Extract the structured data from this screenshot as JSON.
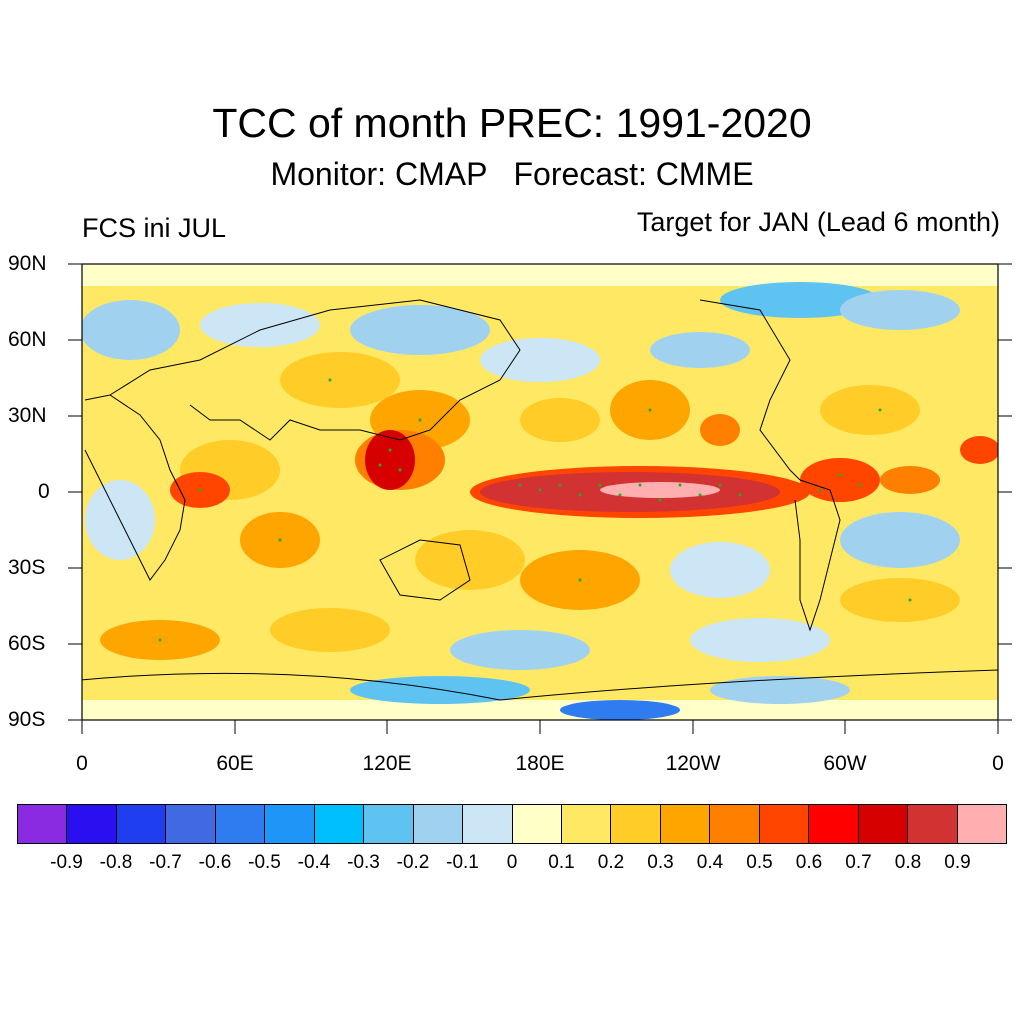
{
  "title": "TCC of month PREC: 1991-2020",
  "subtitle": "Monitor: CMAP   Forecast: CMME",
  "left_label": "FCS ini JUL",
  "right_label": "Target for JAN (Lead 6 month)",
  "lat_labels": [
    "90N",
    "60N",
    "30N",
    "0",
    "30S",
    "60S",
    "90S"
  ],
  "lon_labels": [
    "0",
    "60E",
    "120E",
    "180E",
    "120W",
    "60W",
    "0"
  ],
  "colorbar": {
    "colors": [
      "#8a2be2",
      "#2a10f0",
      "#1f3ef0",
      "#4169e1",
      "#2f7cf0",
      "#1e96f8",
      "#00bfff",
      "#5fc3f2",
      "#a0d2f0",
      "#cce6f6",
      "#ffffc8",
      "#ffe964",
      "#ffcc28",
      "#ffa500",
      "#ff7f00",
      "#ff4500",
      "#ff0000",
      "#d70000",
      "#d23232",
      "#ffafaf"
    ],
    "labels": [
      "-0.9",
      "-0.8",
      "-0.7",
      "-0.6",
      "-0.5",
      "-0.4",
      "-0.3",
      "-0.2",
      "-0.1",
      "0",
      "0.1",
      "0.2",
      "0.3",
      "0.4",
      "0.5",
      "0.6",
      "0.7",
      "0.8",
      "0.9"
    ]
  }
}
